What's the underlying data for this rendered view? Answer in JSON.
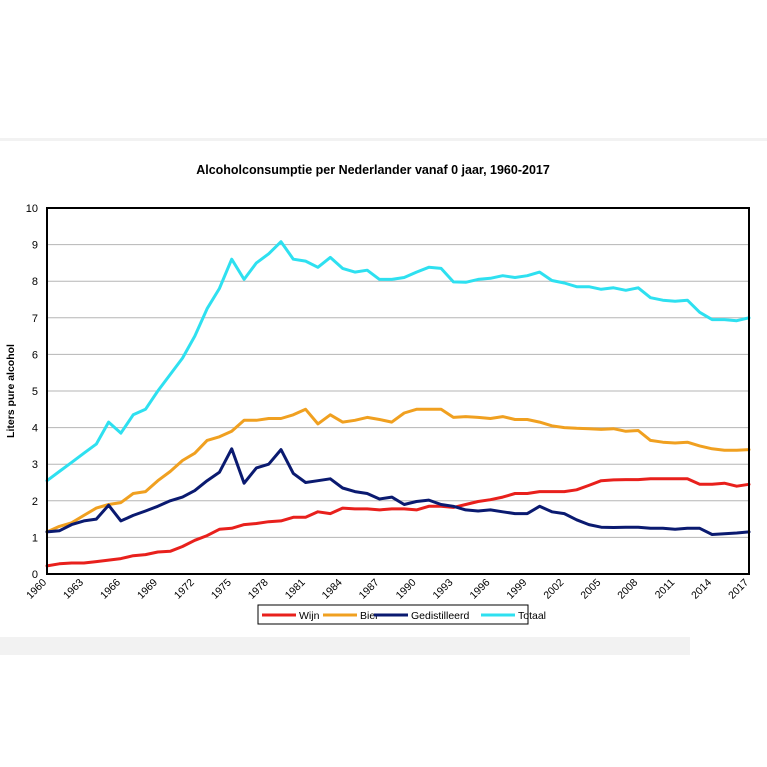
{
  "chart_data": {
    "type": "line",
    "title": "Alcoholconsumptie per Nederlander vanaf 0 jaar, 1960-2017",
    "xlabel": "",
    "ylabel": "Liters pure alcohol",
    "ylim": [
      0,
      10
    ],
    "yticks": [
      "0",
      "1",
      "2",
      "3",
      "4",
      "5",
      "6",
      "7",
      "8",
      "9",
      "10"
    ],
    "xlim": [
      1960,
      2017
    ],
    "xticks": [
      "1960",
      "1963",
      "1966",
      "1969",
      "1972",
      "1975",
      "1978",
      "1981",
      "1984",
      "1987",
      "1990",
      "1993",
      "1996",
      "1999",
      "2002",
      "2005",
      "2008",
      "2011",
      "2014",
      "2017"
    ],
    "grid": "horizontal",
    "legend": "bottom",
    "x": [
      1960,
      1961,
      1962,
      1963,
      1964,
      1965,
      1966,
      1967,
      1968,
      1969,
      1970,
      1971,
      1972,
      1973,
      1974,
      1975,
      1976,
      1977,
      1978,
      1979,
      1980,
      1981,
      1982,
      1983,
      1984,
      1985,
      1986,
      1987,
      1988,
      1989,
      1990,
      1991,
      1992,
      1993,
      1994,
      1995,
      1996,
      1997,
      1998,
      1999,
      2000,
      2001,
      2002,
      2003,
      2004,
      2005,
      2006,
      2007,
      2008,
      2009,
      2010,
      2011,
      2012,
      2013,
      2014,
      2015,
      2016,
      2017
    ],
    "series": [
      {
        "name": "Wijn",
        "color": "#e8201c",
        "values": [
          0.22,
          0.28,
          0.3,
          0.3,
          0.34,
          0.38,
          0.42,
          0.5,
          0.53,
          0.6,
          0.62,
          0.75,
          0.92,
          1.05,
          1.22,
          1.25,
          1.35,
          1.38,
          1.43,
          1.45,
          1.55,
          1.55,
          1.7,
          1.65,
          1.8,
          1.78,
          1.78,
          1.75,
          1.78,
          1.78,
          1.75,
          1.85,
          1.85,
          1.82,
          1.9,
          1.98,
          2.03,
          2.1,
          2.2,
          2.2,
          2.25,
          2.25,
          2.25,
          2.3,
          2.42,
          2.55,
          2.57,
          2.58,
          2.58,
          2.6,
          2.6,
          2.6,
          2.6,
          2.45,
          2.45,
          2.48,
          2.4,
          2.45
        ]
      },
      {
        "name": "Bier",
        "color": "#f0a020",
        "values": [
          1.15,
          1.3,
          1.4,
          1.6,
          1.8,
          1.9,
          1.95,
          2.2,
          2.25,
          2.55,
          2.8,
          3.1,
          3.3,
          3.65,
          3.75,
          3.9,
          4.2,
          4.2,
          4.25,
          4.25,
          4.35,
          4.5,
          4.1,
          4.35,
          4.15,
          4.2,
          4.28,
          4.22,
          4.15,
          4.4,
          4.5,
          4.5,
          4.5,
          4.28,
          4.3,
          4.28,
          4.25,
          4.3,
          4.22,
          4.22,
          4.15,
          4.05,
          4.0,
          3.98,
          3.97,
          3.95,
          3.97,
          3.9,
          3.92,
          3.65,
          3.6,
          3.58,
          3.6,
          3.5,
          3.42,
          3.38,
          3.38,
          3.4
        ]
      },
      {
        "name": "Gedistilleerd",
        "color": "#0a1a70",
        "values": [
          1.15,
          1.18,
          1.35,
          1.45,
          1.5,
          1.88,
          1.45,
          1.6,
          1.72,
          1.85,
          2.0,
          2.1,
          2.28,
          2.55,
          2.78,
          3.42,
          2.48,
          2.9,
          3.0,
          3.4,
          2.75,
          2.5,
          2.55,
          2.6,
          2.35,
          2.25,
          2.2,
          2.05,
          2.1,
          1.9,
          1.98,
          2.02,
          1.9,
          1.85,
          1.75,
          1.72,
          1.75,
          1.7,
          1.65,
          1.65,
          1.85,
          1.7,
          1.65,
          1.48,
          1.35,
          1.28,
          1.27,
          1.28,
          1.28,
          1.25,
          1.25,
          1.22,
          1.25,
          1.25,
          1.08,
          1.1,
          1.12,
          1.15
        ]
      },
      {
        "name": "Totaal",
        "color": "#2ee0f0",
        "values": [
          2.55,
          2.8,
          3.05,
          3.3,
          3.55,
          4.15,
          3.85,
          4.35,
          4.5,
          5.0,
          5.45,
          5.9,
          6.5,
          7.25,
          7.8,
          8.6,
          8.05,
          8.5,
          8.75,
          9.08,
          8.6,
          8.55,
          8.38,
          8.65,
          8.35,
          8.25,
          8.3,
          8.05,
          8.05,
          8.1,
          8.25,
          8.38,
          8.35,
          7.98,
          7.97,
          8.05,
          8.08,
          8.15,
          8.1,
          8.15,
          8.25,
          8.02,
          7.95,
          7.85,
          7.85,
          7.78,
          7.82,
          7.75,
          7.82,
          7.55,
          7.48,
          7.45,
          7.48,
          7.15,
          6.95,
          6.95,
          6.92,
          7.0
        ]
      }
    ]
  }
}
